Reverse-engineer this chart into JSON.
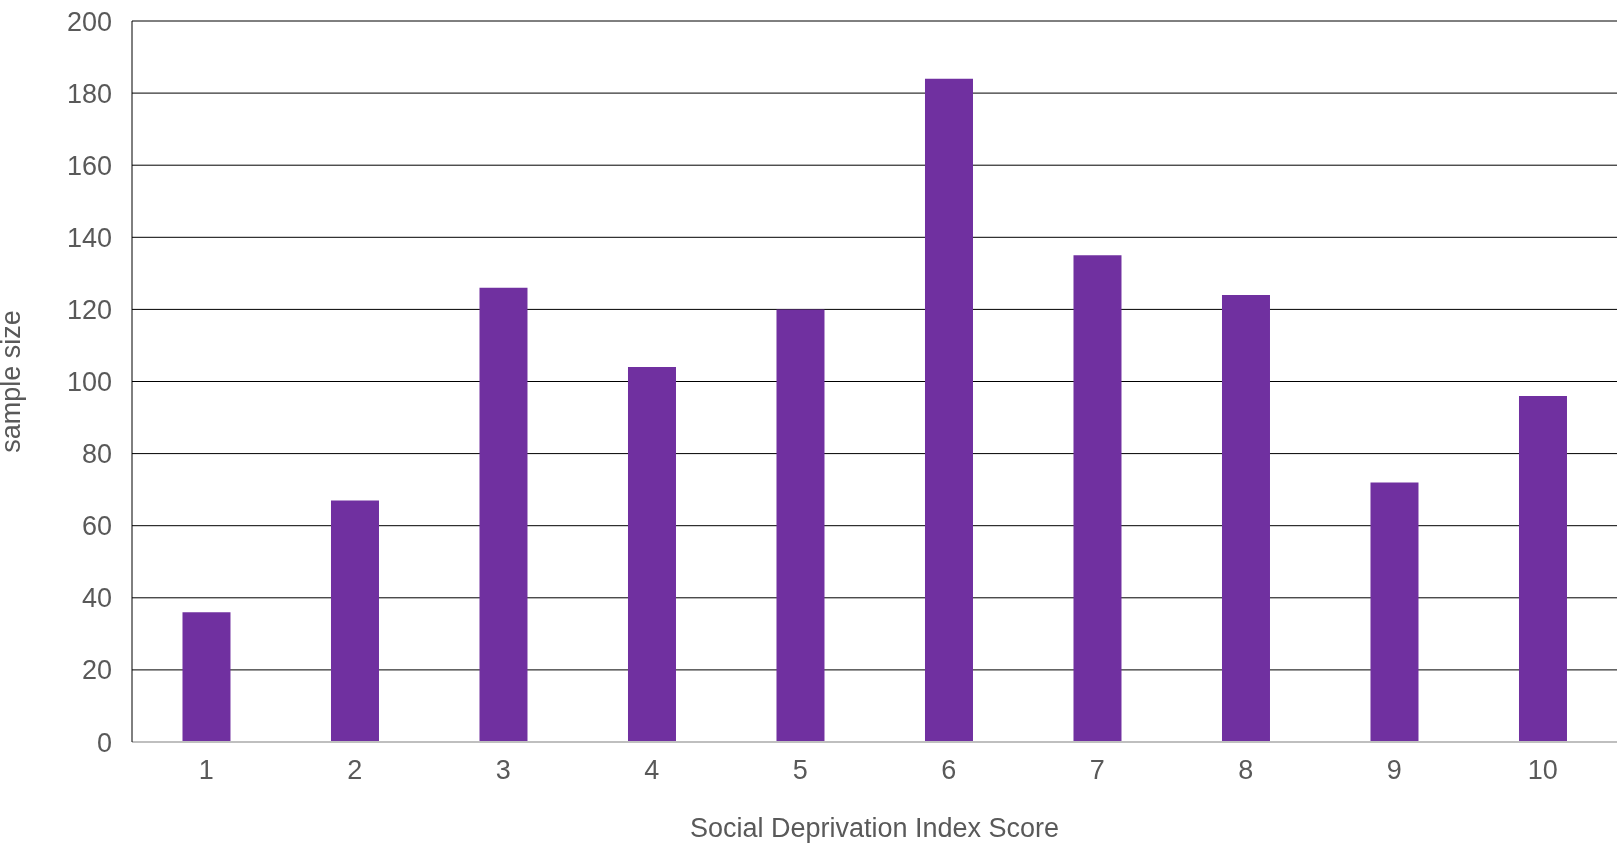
{
  "chart_data": {
    "type": "bar",
    "xlabel": "Social Deprivation Index Score",
    "ylabel": "sample size",
    "categories": [
      "1",
      "2",
      "3",
      "4",
      "5",
      "6",
      "7",
      "8",
      "9",
      "10"
    ],
    "values": [
      36,
      67,
      126,
      104,
      120,
      184,
      135,
      124,
      72,
      96
    ],
    "color": "#7030a0",
    "ylim": [
      0,
      200
    ],
    "yticks": [
      0,
      20,
      40,
      60,
      80,
      100,
      120,
      140,
      160,
      180,
      200
    ],
    "grid": "y",
    "legend": false
  }
}
